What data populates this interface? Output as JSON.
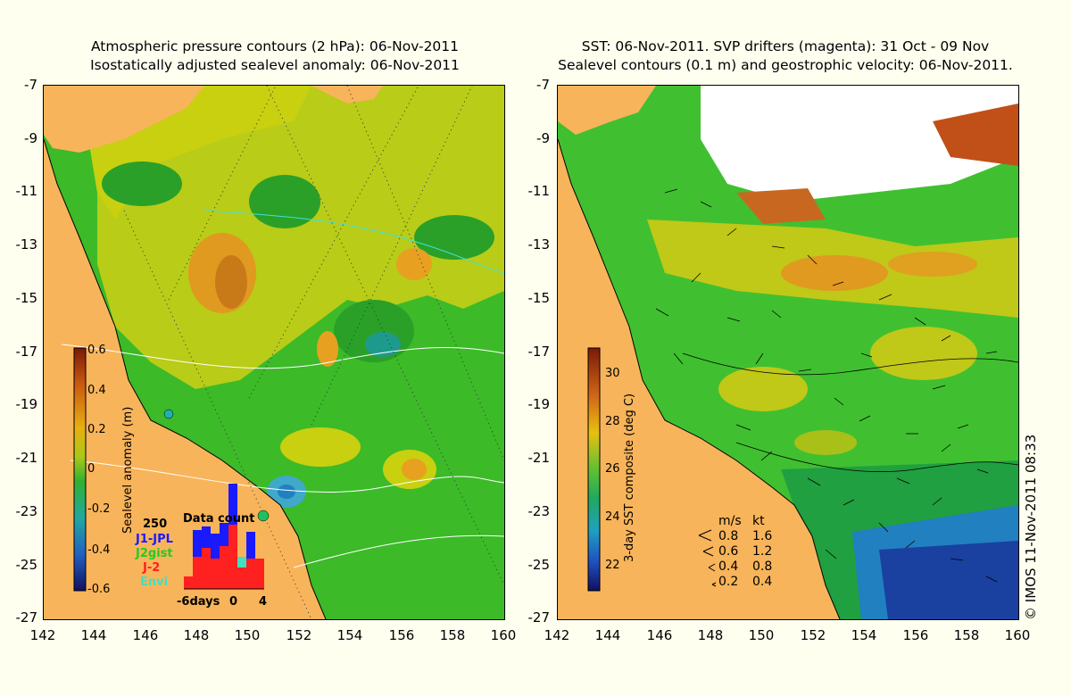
{
  "left_panel": {
    "title_line1": "Atmospheric pressure contours (2 hPa): 06-Nov-2011",
    "title_line2": "Isostatically adjusted sealevel anomaly: 06-Nov-2011",
    "colorbar": {
      "label": "Sealevel anomaly (m)",
      "ticks": [
        "0.6",
        "0.4",
        "0.2",
        "0",
        "-0.2",
        "-0.4",
        "-0.6"
      ]
    },
    "data_count": {
      "title": "Data count",
      "max_label": "250",
      "series": [
        "J1-JPL",
        "J2gist",
        "J-2",
        "Envi"
      ],
      "series_colors": [
        "#1a1aff",
        "#22cc22",
        "#ff2020",
        "#40e0c0"
      ],
      "x_labels": [
        "-6days",
        "0",
        "4"
      ]
    }
  },
  "right_panel": {
    "title_line1": "SST: 06-Nov-2011. SVP drifters (magenta): 31 Oct - 09 Nov",
    "title_line2": "Sealevel contours (0.1 m) and geostrophic velocity: 06-Nov-2011.",
    "colorbar": {
      "label": "3-day SST composite (deg C)",
      "ticks": [
        "30",
        "28",
        "26",
        "24",
        "22"
      ]
    },
    "velocity_legend": {
      "header_ms": "m/s",
      "header_kt": "kt",
      "rows": [
        {
          "ms": "0.8",
          "kt": "1.6"
        },
        {
          "ms": "0.6",
          "kt": "1.2"
        },
        {
          "ms": "0.4",
          "kt": "0.8"
        },
        {
          "ms": "0.2",
          "kt": "0.4"
        }
      ]
    }
  },
  "axes": {
    "y_ticks": [
      "-7",
      "-9",
      "-11",
      "-13",
      "-15",
      "-17",
      "-19",
      "-21",
      "-23",
      "-25",
      "-27"
    ],
    "x_ticks": [
      "142",
      "144",
      "146",
      "148",
      "150",
      "152",
      "154",
      "156",
      "158",
      "160"
    ]
  },
  "copyright": "© IMOS 11-Nov-2011 08:33",
  "colors": {
    "background": "#fffff0",
    "land": "#f8b45a",
    "cloud": "#ffffff",
    "sla_green": "#3cba28",
    "sla_yellow": "#c8d010",
    "sla_orange": "#e8a020",
    "sst_green": "#40c030",
    "sst_blue": "#103090"
  }
}
